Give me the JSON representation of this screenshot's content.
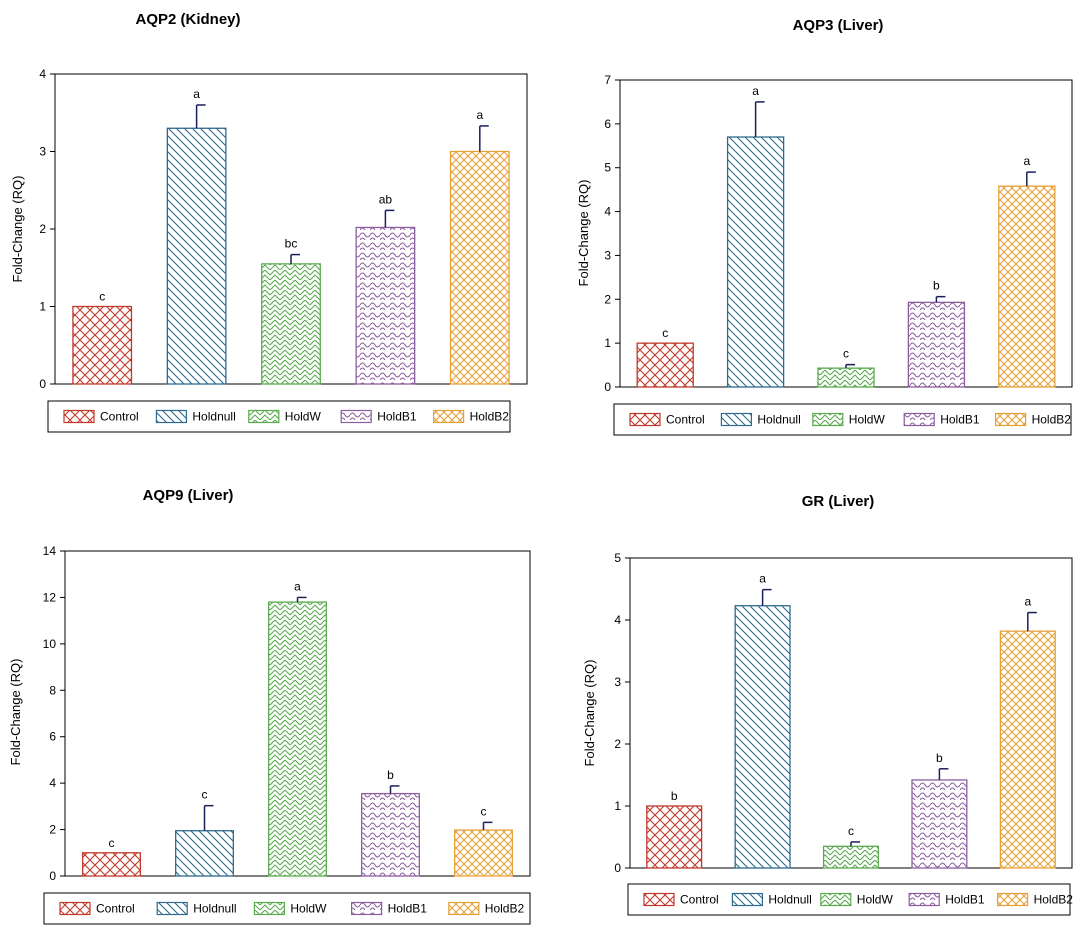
{
  "colors": {
    "Control": "#c0392b",
    "Holdnull": "#2e6a8f",
    "HoldW": "#5aaa4e",
    "HoldB1": "#8b5d9e",
    "HoldB2": "#e6a13a",
    "axis": "#000000"
  },
  "chart_data": [
    {
      "type": "bar",
      "title": "AQP2 (Kidney)",
      "ylabel": "Fold-Change (RQ)",
      "xlabel": "",
      "ylim": [
        0,
        4
      ],
      "yticks": [
        "0",
        "1",
        "2",
        "3",
        "4"
      ],
      "categories": [
        "Control",
        "Holdnull",
        "HoldW",
        "HoldB1",
        "HoldB2"
      ],
      "values": [
        1.0,
        3.3,
        1.55,
        2.02,
        3.0
      ],
      "errors": [
        0,
        0.3,
        0.12,
        0.22,
        0.33
      ],
      "letters": [
        "c",
        "a",
        "bc",
        "ab",
        "a"
      ],
      "legend": [
        "Control",
        "Holdnull",
        "HoldW",
        "HoldB1",
        "HoldB2"
      ]
    },
    {
      "type": "bar",
      "title": "AQP3 (Liver)",
      "ylabel": "Fold-Change (RQ)",
      "xlabel": "",
      "ylim": [
        0,
        7
      ],
      "yticks": [
        "0",
        "1",
        "2",
        "3",
        "4",
        "5",
        "6",
        "7"
      ],
      "categories": [
        "Control",
        "Holdnull",
        "HoldW",
        "HoldB1",
        "HoldB2"
      ],
      "values": [
        1.0,
        5.7,
        0.43,
        1.93,
        4.58
      ],
      "errors": [
        0,
        0.8,
        0.08,
        0.13,
        0.32
      ],
      "letters": [
        "c",
        "a",
        "c",
        "b",
        "a"
      ],
      "legend": [
        "Control",
        "Holdnull",
        "HoldW",
        "HoldB1",
        "HoldB2"
      ]
    },
    {
      "type": "bar",
      "title": "AQP9 (Liver)",
      "ylabel": "Fold-Change (RQ)",
      "xlabel": "",
      "ylim": [
        0,
        14
      ],
      "yticks": [
        "0",
        "2",
        "4",
        "6",
        "8",
        "10",
        "12",
        "14"
      ],
      "categories": [
        "Control",
        "Holdnull",
        "HoldW",
        "HoldB1",
        "HoldB2"
      ],
      "values": [
        1.0,
        1.95,
        11.8,
        3.55,
        1.98
      ],
      "errors": [
        0,
        1.08,
        0.2,
        0.33,
        0.33
      ],
      "letters": [
        "c",
        "c",
        "a",
        "b",
        "c"
      ],
      "legend": [
        "Control",
        "Holdnull",
        "HoldW",
        "HoldB1",
        "HoldB2"
      ]
    },
    {
      "type": "bar",
      "title": "GR (Liver)",
      "ylabel": "Fold-Change (RQ)",
      "xlabel": "",
      "ylim": [
        0,
        5
      ],
      "yticks": [
        "0",
        "1",
        "2",
        "3",
        "4",
        "5"
      ],
      "categories": [
        "Control",
        "Holdnull",
        "HoldW",
        "HoldB1",
        "HoldB2"
      ],
      "values": [
        1.0,
        4.23,
        0.35,
        1.42,
        3.82
      ],
      "errors": [
        0,
        0.26,
        0.07,
        0.18,
        0.3
      ],
      "letters": [
        "b",
        "a",
        "c",
        "b",
        "a"
      ],
      "legend": [
        "Control",
        "Holdnull",
        "HoldW",
        "HoldB1",
        "HoldB2"
      ]
    }
  ]
}
